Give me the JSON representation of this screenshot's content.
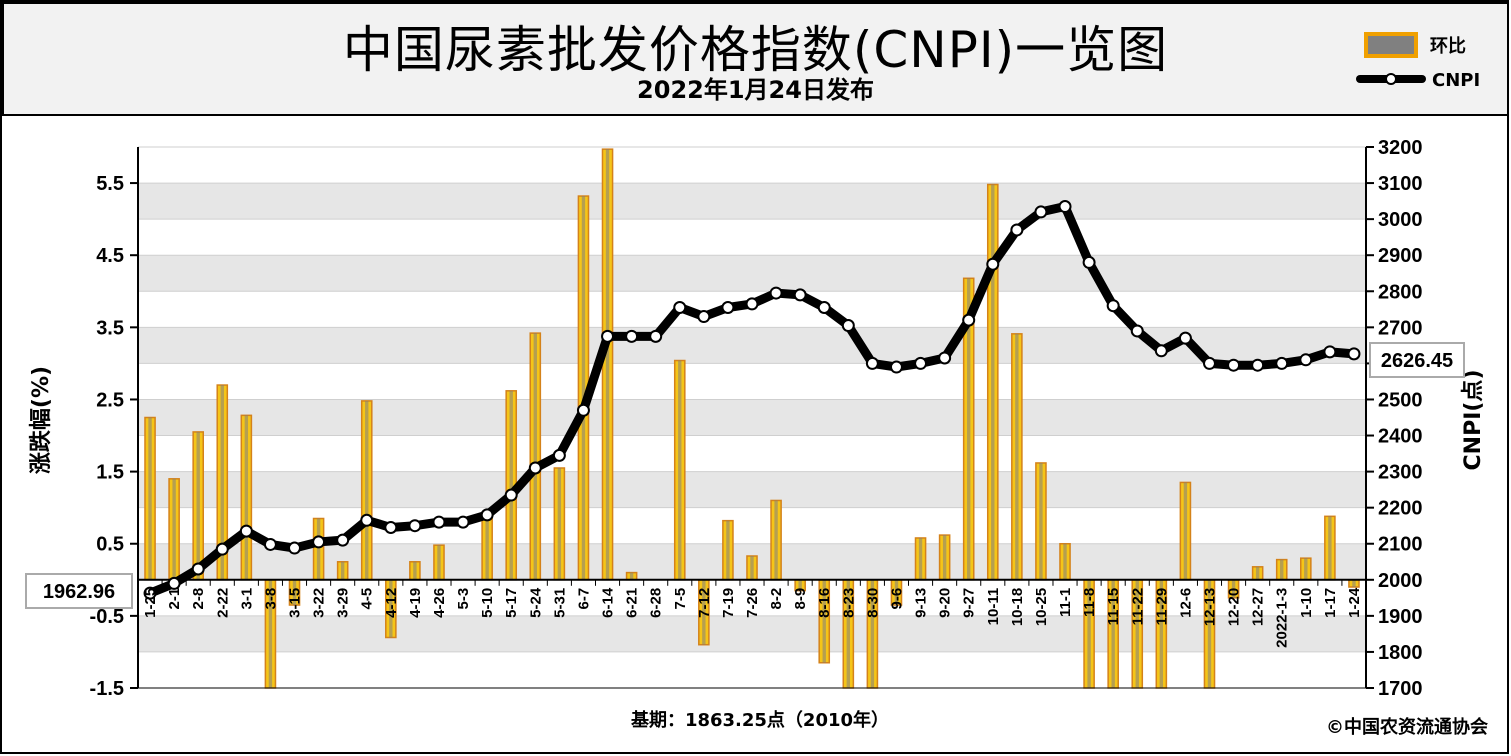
{
  "header": {
    "title": "中国尿素批发价格指数(CNPI)一览图",
    "subtitle": "2022年1月24日发布"
  },
  "footer": {
    "base_period": "基期：1863.25点（2010年）",
    "copyright": "©中国农资流通协会"
  },
  "legend": {
    "bar_label": "环比",
    "line_label": "CNPI"
  },
  "colors": {
    "bar_fill": "#f5c518",
    "bar_core": "#808080",
    "bar_edge": "#d4821a",
    "line": "#000000",
    "marker_fill": "#ffffff",
    "grid_band": "#e6e6e6"
  },
  "chart_data": {
    "type": "bar+line",
    "title": "中国尿素批发价格指数(CNPI)一览图",
    "ylabel_left": "涨跌幅(%)",
    "ylabel_right": "CNPI(点)",
    "ylim_left": [
      -1.5,
      6.0
    ],
    "yticks_left": [
      "5.5",
      "4.5",
      "3.5",
      "2.5",
      "1.5",
      "0.5",
      "-0.5",
      "-1.5"
    ],
    "ylim_right": [
      1700,
      3200
    ],
    "yticks_right": [
      "3200",
      "3100",
      "3000",
      "2900",
      "2800",
      "2700",
      "2600",
      "2500",
      "2400",
      "2300",
      "2200",
      "2100",
      "2000",
      "1900",
      "1800",
      "1700"
    ],
    "categories": [
      "1-25",
      "2-1",
      "2-8",
      "2-22",
      "3-1",
      "3-8",
      "3-15",
      "3-22",
      "3-29",
      "4-5",
      "4-12",
      "4-19",
      "4-26",
      "5-3",
      "5-10",
      "5-17",
      "5-24",
      "5-31",
      "6-7",
      "6-14",
      "6-21",
      "6-28",
      "7-5",
      "7-12",
      "7-19",
      "7-26",
      "8-2",
      "8-9",
      "8-16",
      "8-23",
      "8-30",
      "9-6",
      "9-13",
      "9-20",
      "9-27",
      "10-11",
      "10-18",
      "10-25",
      "11-1",
      "11-8",
      "11-15",
      "11-22",
      "11-29",
      "12-6",
      "12-13",
      "12-20",
      "12-27",
      "2022-1-3",
      "1-10",
      "1-17",
      "1-24"
    ],
    "series": [
      {
        "name": "环比",
        "type": "bar",
        "values": [
          2.25,
          1.4,
          2.05,
          2.7,
          2.28,
          -1.5,
          -0.35,
          0.85,
          0.25,
          2.48,
          -0.8,
          0.25,
          0.48,
          0.0,
          0.9,
          2.62,
          3.42,
          1.55,
          5.32,
          5.97,
          0.1,
          0.0,
          3.04,
          -0.9,
          0.82,
          0.33,
          1.1,
          -0.15,
          -1.15,
          -1.5,
          -1.5,
          -0.35,
          0.58,
          0.62,
          4.18,
          5.48,
          3.41,
          1.62,
          0.5,
          -1.5,
          -1.5,
          -1.5,
          -1.5,
          1.35,
          -1.5,
          -0.25,
          0.18,
          0.28,
          0.3,
          0.88,
          -0.1
        ]
      },
      {
        "name": "CNPI",
        "type": "line",
        "values": [
          1962.96,
          1990,
          2030,
          2085,
          2135,
          2098,
          2088,
          2105,
          2110,
          2165,
          2145,
          2150,
          2160,
          2160,
          2180,
          2235,
          2310,
          2345,
          2470,
          2675,
          2675,
          2675,
          2755,
          2730,
          2755,
          2765,
          2795,
          2790,
          2755,
          2705,
          2600,
          2590,
          2600,
          2615,
          2720,
          2875,
          2970,
          3020,
          3035,
          2880,
          2760,
          2690,
          2635,
          2670,
          2600,
          2595,
          2595,
          2600,
          2610,
          2632,
          2626.45
        ]
      }
    ],
    "annotations": [
      "1962.96",
      "2626.45"
    ]
  }
}
